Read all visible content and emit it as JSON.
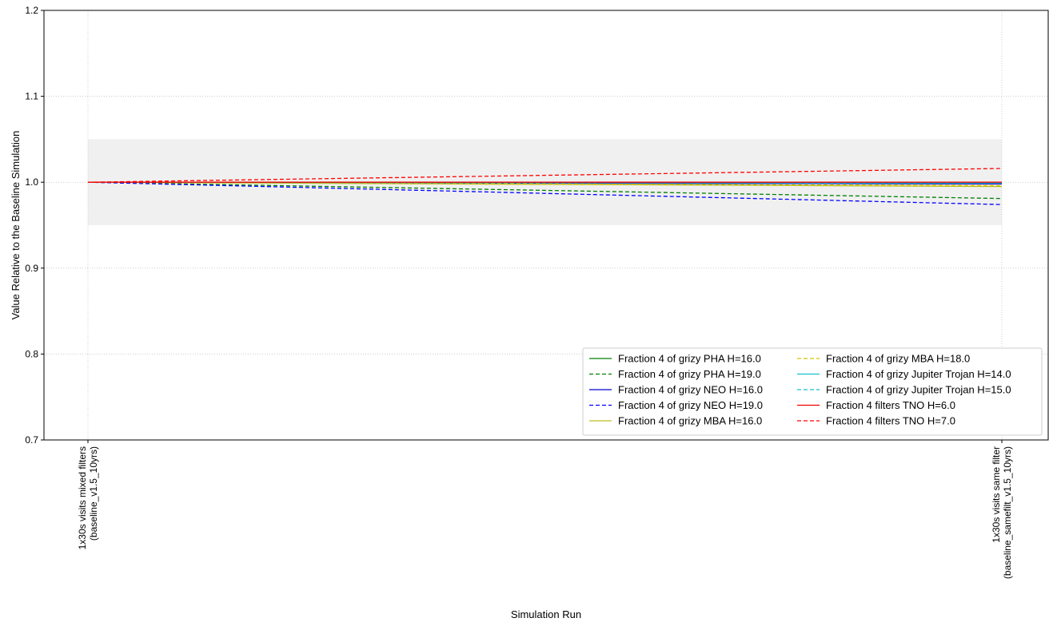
{
  "chart_data": {
    "type": "line",
    "xlabel": "Simulation Run",
    "ylabel": "Value Relative to the Baseline Simulation",
    "ylim": [
      0.7,
      1.2
    ],
    "yticks": [
      0.7,
      0.8,
      0.9,
      1.0,
      1.1,
      1.2
    ],
    "categories": [
      [
        "1x30s visits mixed filters",
        "(baseline_v1.5_10yrs)"
      ],
      [
        "1x30s visits same filter",
        "(baseline_samefilt_v1.5_10yrs)"
      ]
    ],
    "grid": true,
    "band": {
      "low": 0.95,
      "high": 1.05,
      "color": "#f0f0f0"
    },
    "legend_placement": "lower-right",
    "series": [
      {
        "name": "Fraction 4 of grizy PHA H=16.0",
        "values": [
          1.0,
          0.998
        ],
        "color": "#008000",
        "dash": "solid"
      },
      {
        "name": "Fraction 4 of grizy PHA H=19.0",
        "values": [
          1.0,
          0.981
        ],
        "color": "#008000",
        "dash": "dashed"
      },
      {
        "name": "Fraction 4 of grizy NEO H=16.0",
        "values": [
          1.0,
          0.998
        ],
        "color": "#0000cc",
        "dash": "solid"
      },
      {
        "name": "Fraction 4 of grizy NEO H=19.0",
        "values": [
          1.0,
          0.974
        ],
        "color": "#0000ff",
        "dash": "dashed"
      },
      {
        "name": "Fraction 4 of grizy MBA H=16.0",
        "values": [
          1.0,
          0.995
        ],
        "color": "#bcbd22",
        "dash": "solid"
      },
      {
        "name": "Fraction 4 of grizy MBA H=18.0",
        "values": [
          1.0,
          0.996
        ],
        "color": "#d4c400",
        "dash": "dashed"
      },
      {
        "name": "Fraction 4 of grizy Jupiter Trojan H=14.0",
        "values": [
          1.0,
          0.999
        ],
        "color": "#17becf",
        "dash": "solid"
      },
      {
        "name": "Fraction 4 of grizy Jupiter Trojan H=15.0",
        "values": [
          1.0,
          0.999
        ],
        "color": "#17becf",
        "dash": "dashed"
      },
      {
        "name": "Fraction 4 filters TNO H=6.0",
        "values": [
          1.0,
          1.0
        ],
        "color": "#ee0000",
        "dash": "solid"
      },
      {
        "name": "Fraction 4 filters TNO H=7.0",
        "values": [
          1.0,
          1.016
        ],
        "color": "#ff0000",
        "dash": "dashed"
      }
    ]
  }
}
